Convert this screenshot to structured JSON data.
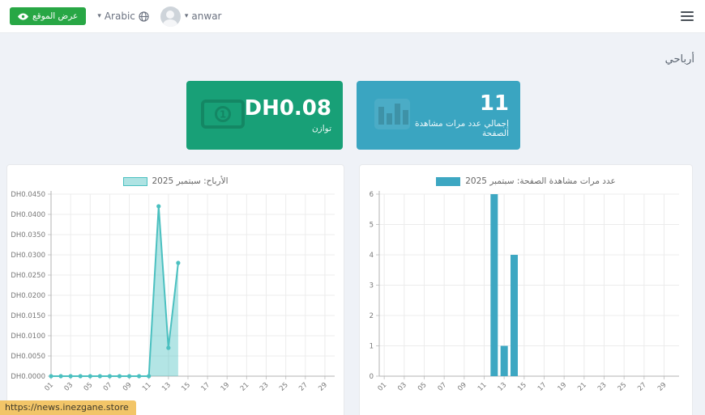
{
  "navbar": {
    "view_site_label": "عرض الموقع",
    "language_label": "Arabic",
    "username": "anwar"
  },
  "page": {
    "title": "أرباحي"
  },
  "stat_cards": {
    "balance": {
      "value": "DH0.08",
      "label": "توازن",
      "color": "#18a077"
    },
    "page_views": {
      "value": "11",
      "label": "إجمالي عدد مرات مشاهدة الصفحة",
      "color": "#3aa5c1"
    }
  },
  "status_bar": {
    "url": "https://news.inezgane.store"
  },
  "chart_data": [
    {
      "type": "area",
      "legend_label": "الأرباح: سبتمبر 2025",
      "x_days": 30,
      "values": [
        0,
        0,
        0,
        0,
        0,
        0,
        0,
        0,
        0,
        0,
        0,
        0.042,
        0.007,
        0.028
      ],
      "ylim": [
        0,
        0.045
      ],
      "yticks": [
        {
          "v": 0.0,
          "label": "DH0.0000"
        },
        {
          "v": 0.005,
          "label": "DH0.0050"
        },
        {
          "v": 0.01,
          "label": "DH0.0100"
        },
        {
          "v": 0.015,
          "label": "DH0.0150"
        },
        {
          "v": 0.02,
          "label": "DH0.0200"
        },
        {
          "v": 0.025,
          "label": "DH0.0250"
        },
        {
          "v": 0.03,
          "label": "DH0.0300"
        },
        {
          "v": 0.035,
          "label": "DH0.0350"
        },
        {
          "v": 0.04,
          "label": "DH0.0400"
        },
        {
          "v": 0.045,
          "label": "DH0.0450"
        }
      ],
      "xticks": [
        {
          "day": 1,
          "label": "01"
        },
        {
          "day": 3,
          "label": "03"
        },
        {
          "day": 5,
          "label": "05"
        },
        {
          "day": 7,
          "label": "07"
        },
        {
          "day": 9,
          "label": "09"
        },
        {
          "day": 11,
          "label": "11"
        },
        {
          "day": 13,
          "label": "13"
        },
        {
          "day": 15,
          "label": "15"
        },
        {
          "day": 17,
          "label": "17"
        },
        {
          "day": 19,
          "label": "19"
        },
        {
          "day": 21,
          "label": "21"
        },
        {
          "day": 23,
          "label": "23"
        },
        {
          "day": 25,
          "label": "25"
        },
        {
          "day": 27,
          "label": "27"
        },
        {
          "day": 29,
          "label": "29"
        }
      ],
      "color": "#4bc0c0",
      "fill_opacity": 0.42,
      "swatch": {
        "fill": "rgba(75,192,192,0.45)",
        "border": "#4bc0c0"
      }
    },
    {
      "type": "bar",
      "legend_label": "عدد مرات مشاهدة الصفحة: سبتمبر 2025",
      "x_days": 30,
      "values": [
        0,
        0,
        0,
        0,
        0,
        0,
        0,
        0,
        0,
        0,
        0,
        6,
        1,
        4
      ],
      "ylim": [
        0,
        6
      ],
      "yticks": [
        {
          "v": 0,
          "label": "0"
        },
        {
          "v": 1,
          "label": "1"
        },
        {
          "v": 2,
          "label": "2"
        },
        {
          "v": 3,
          "label": "3"
        },
        {
          "v": 4,
          "label": "4"
        },
        {
          "v": 5,
          "label": "5"
        },
        {
          "v": 6,
          "label": "6"
        }
      ],
      "xticks": [
        {
          "day": 1,
          "label": "01"
        },
        {
          "day": 3,
          "label": "03"
        },
        {
          "day": 5,
          "label": "05"
        },
        {
          "day": 7,
          "label": "07"
        },
        {
          "day": 9,
          "label": "09"
        },
        {
          "day": 11,
          "label": "11"
        },
        {
          "day": 13,
          "label": "13"
        },
        {
          "day": 15,
          "label": "15"
        },
        {
          "day": 17,
          "label": "17"
        },
        {
          "day": 19,
          "label": "19"
        },
        {
          "day": 21,
          "label": "21"
        },
        {
          "day": 23,
          "label": "23"
        },
        {
          "day": 25,
          "label": "25"
        },
        {
          "day": 27,
          "label": "27"
        },
        {
          "day": 29,
          "label": "29"
        }
      ],
      "color": "#3da7c2",
      "swatch": {
        "fill": "#3da7c2",
        "border": "#3da7c2"
      }
    }
  ]
}
